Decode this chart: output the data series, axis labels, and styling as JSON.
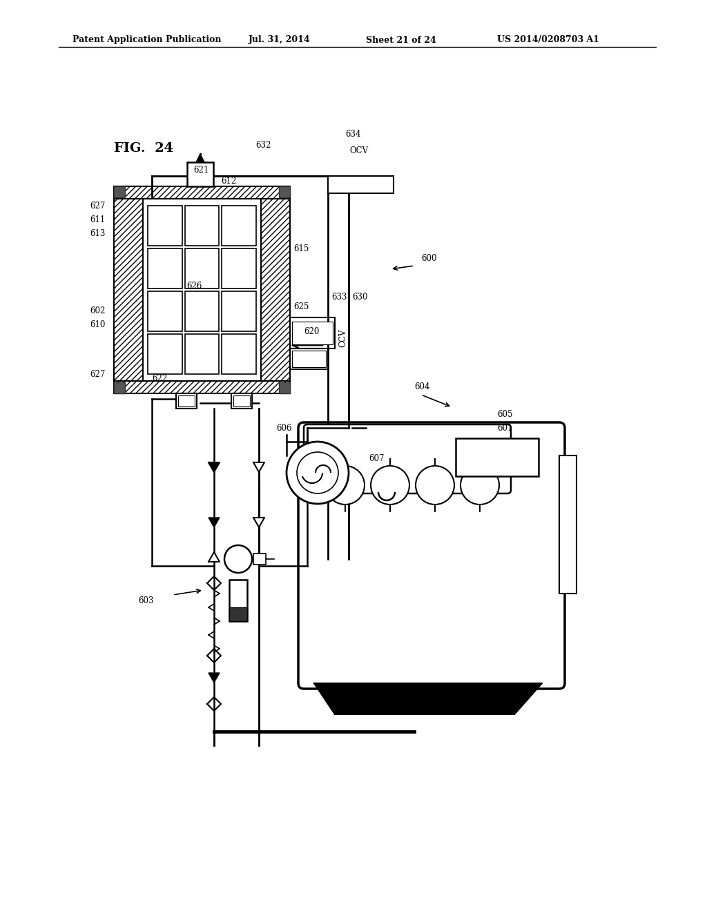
{
  "background_color": "#ffffff",
  "header_text": "Patent Application Publication",
  "header_date": "Jul. 31, 2014",
  "header_sheet": "Sheet 21 of 24",
  "header_patent": "US 2014/0208703 A1",
  "fig_label": "FIG.  24"
}
